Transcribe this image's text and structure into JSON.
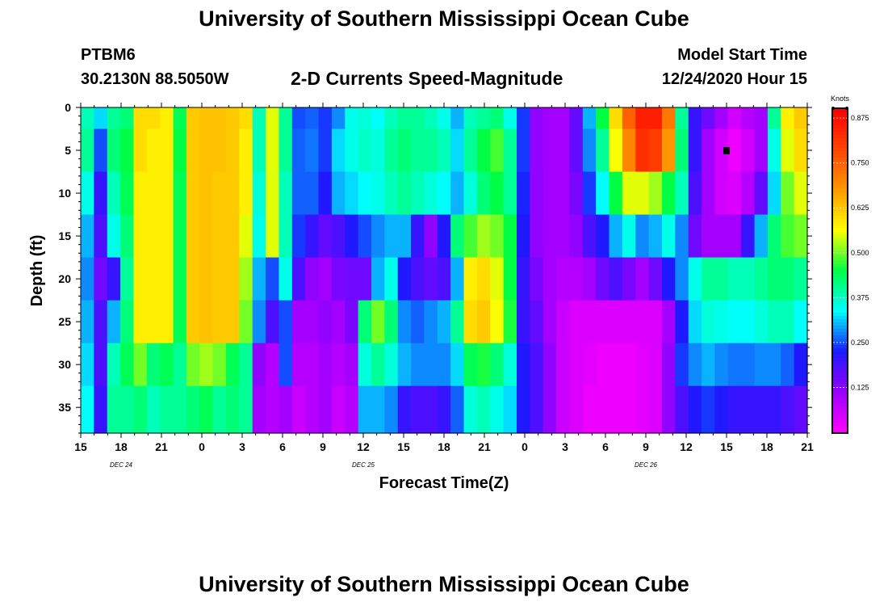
{
  "header": {
    "title": "University of Southern Mississippi Ocean Cube",
    "station": "PTBM6",
    "coords": "30.2130N 88.5050W",
    "model_label": "Model Start Time",
    "model_time": "12/24/2020 Hour 15"
  },
  "footer": {
    "title": "University of Southern Mississippi Ocean Cube"
  },
  "chart_data": {
    "type": "heatmap",
    "title": "2-D Currents Speed-Magnitude",
    "xlabel": "Forecast Time(Z)",
    "ylabel": "Depth (ft)",
    "x_start": "12/24/2020 15Z",
    "x_range_hours": [
      0,
      54
    ],
    "x_tick_labels": [
      "15",
      "18",
      "21",
      "0",
      "3",
      "6",
      "9",
      "12",
      "15",
      "18",
      "21",
      "0",
      "3",
      "6",
      "9",
      "12",
      "15",
      "18",
      "21"
    ],
    "date_labels": [
      {
        "text": "DEC 24",
        "at_tick": "18"
      },
      {
        "text": "DEC 25",
        "at_tick": "12"
      },
      {
        "text": "DEC 26",
        "at_tick": "9"
      }
    ],
    "y_range": [
      0,
      38
    ],
    "y_tick_labels": [
      "0",
      "5",
      "10",
      "15",
      "20",
      "25",
      "30",
      "35"
    ],
    "colorbar": {
      "unit": "Knots",
      "min": 0,
      "max": 0.9,
      "ticks": [
        "0.875",
        "0.750",
        "0.625",
        "0.500",
        "0.375",
        "0.250",
        "0.125"
      ],
      "colors": [
        "#ff00ff",
        "#9900ff",
        "#1a1aff",
        "#00ffff",
        "#00ff44",
        "#ffff00",
        "#ff9900",
        "#ff4400",
        "#ff0000"
      ]
    },
    "depths_ft": [
      0,
      5,
      10,
      15,
      20,
      25,
      30,
      35
    ],
    "column_hours": [
      0,
      1,
      2,
      3,
      4,
      5,
      6,
      7,
      8,
      9,
      10,
      11,
      12,
      13,
      14,
      15,
      16,
      17,
      18,
      19,
      20,
      21,
      22,
      23,
      24,
      25,
      26,
      27,
      28,
      29,
      30,
      31,
      32,
      33,
      34,
      35,
      36,
      37,
      38,
      39,
      40,
      41,
      42,
      43,
      44,
      45,
      46,
      47,
      48,
      49,
      50,
      51,
      52,
      53,
      54
    ],
    "speed_knots_by_depth": [
      [
        0.38,
        0.32,
        0.4,
        0.42,
        0.6,
        0.6,
        0.58,
        0.44,
        0.62,
        0.63,
        0.63,
        0.62,
        0.6,
        0.38,
        0.55,
        0.4,
        0.25,
        0.26,
        0.24,
        0.28,
        0.35,
        0.36,
        0.34,
        0.38,
        0.4,
        0.4,
        0.38,
        0.35,
        0.3,
        0.38,
        0.4,
        0.42,
        0.35,
        0.24,
        0.12,
        0.1,
        0.1,
        0.16,
        0.3,
        0.45,
        0.6,
        0.75,
        0.85,
        0.85,
        0.72,
        0.4,
        0.2,
        0.15,
        0.1,
        0.05,
        0.08,
        0.1,
        0.4,
        0.58,
        0.62
      ],
      [
        0.4,
        0.25,
        0.42,
        0.45,
        0.6,
        0.58,
        0.58,
        0.45,
        0.62,
        0.63,
        0.63,
        0.62,
        0.58,
        0.38,
        0.55,
        0.4,
        0.26,
        0.27,
        0.24,
        0.32,
        0.35,
        0.37,
        0.36,
        0.4,
        0.42,
        0.4,
        0.4,
        0.38,
        0.32,
        0.4,
        0.45,
        0.48,
        0.4,
        0.24,
        0.12,
        0.1,
        0.1,
        0.16,
        0.28,
        0.4,
        0.56,
        0.7,
        0.82,
        0.8,
        0.68,
        0.42,
        0.2,
        0.1,
        0.05,
        0.02,
        0.05,
        0.1,
        0.35,
        0.55,
        0.6
      ],
      [
        0.35,
        0.2,
        0.38,
        0.44,
        0.58,
        0.58,
        0.58,
        0.44,
        0.62,
        0.63,
        0.62,
        0.62,
        0.58,
        0.36,
        0.55,
        0.38,
        0.26,
        0.26,
        0.22,
        0.3,
        0.32,
        0.34,
        0.35,
        0.38,
        0.4,
        0.38,
        0.36,
        0.34,
        0.3,
        0.36,
        0.42,
        0.45,
        0.4,
        0.23,
        0.12,
        0.1,
        0.1,
        0.14,
        0.24,
        0.34,
        0.45,
        0.55,
        0.55,
        0.52,
        0.45,
        0.38,
        0.18,
        0.1,
        0.05,
        0.04,
        0.08,
        0.16,
        0.32,
        0.5,
        0.55
      ],
      [
        0.3,
        0.18,
        0.35,
        0.42,
        0.58,
        0.58,
        0.58,
        0.44,
        0.62,
        0.63,
        0.62,
        0.62,
        0.55,
        0.35,
        0.55,
        0.38,
        0.24,
        0.2,
        0.16,
        0.18,
        0.22,
        0.25,
        0.28,
        0.3,
        0.3,
        0.2,
        0.12,
        0.22,
        0.42,
        0.48,
        0.52,
        0.5,
        0.45,
        0.22,
        0.12,
        0.1,
        0.1,
        0.12,
        0.18,
        0.22,
        0.3,
        0.35,
        0.28,
        0.3,
        0.35,
        0.28,
        0.15,
        0.1,
        0.1,
        0.1,
        0.2,
        0.3,
        0.42,
        0.48,
        0.5
      ],
      [
        0.28,
        0.15,
        0.2,
        0.4,
        0.58,
        0.58,
        0.58,
        0.44,
        0.62,
        0.63,
        0.62,
        0.62,
        0.52,
        0.3,
        0.25,
        0.35,
        0.18,
        0.12,
        0.1,
        0.14,
        0.15,
        0.15,
        0.3,
        0.35,
        0.22,
        0.18,
        0.16,
        0.18,
        0.3,
        0.58,
        0.6,
        0.55,
        0.45,
        0.2,
        0.14,
        0.1,
        0.08,
        0.08,
        0.1,
        0.15,
        0.18,
        0.14,
        0.1,
        0.15,
        0.22,
        0.28,
        0.35,
        0.4,
        0.4,
        0.38,
        0.38,
        0.4,
        0.42,
        0.42,
        0.4
      ],
      [
        0.3,
        0.18,
        0.3,
        0.42,
        0.58,
        0.58,
        0.58,
        0.44,
        0.62,
        0.63,
        0.62,
        0.62,
        0.5,
        0.28,
        0.18,
        0.25,
        0.1,
        0.1,
        0.12,
        0.1,
        0.14,
        0.42,
        0.5,
        0.42,
        0.28,
        0.26,
        0.28,
        0.3,
        0.4,
        0.6,
        0.62,
        0.56,
        0.46,
        0.2,
        0.16,
        0.1,
        0.06,
        0.04,
        0.04,
        0.04,
        0.04,
        0.04,
        0.04,
        0.04,
        0.1,
        0.22,
        0.32,
        0.36,
        0.35,
        0.34,
        0.34,
        0.36,
        0.38,
        0.38,
        0.34
      ],
      [
        0.32,
        0.18,
        0.38,
        0.44,
        0.5,
        0.42,
        0.44,
        0.4,
        0.5,
        0.52,
        0.5,
        0.44,
        0.4,
        0.12,
        0.08,
        0.25,
        0.08,
        0.08,
        0.1,
        0.08,
        0.1,
        0.36,
        0.4,
        0.36,
        0.3,
        0.28,
        0.28,
        0.28,
        0.32,
        0.44,
        0.46,
        0.42,
        0.36,
        0.22,
        0.18,
        0.12,
        0.06,
        0.04,
        0.03,
        0.02,
        0.02,
        0.02,
        0.03,
        0.04,
        0.12,
        0.24,
        0.28,
        0.3,
        0.28,
        0.27,
        0.27,
        0.28,
        0.28,
        0.26,
        0.22
      ],
      [
        0.34,
        0.2,
        0.4,
        0.4,
        0.42,
        0.38,
        0.4,
        0.4,
        0.42,
        0.44,
        0.4,
        0.42,
        0.4,
        0.1,
        0.08,
        0.1,
        0.06,
        0.08,
        0.1,
        0.06,
        0.08,
        0.3,
        0.3,
        0.28,
        0.2,
        0.18,
        0.18,
        0.2,
        0.26,
        0.36,
        0.38,
        0.35,
        0.32,
        0.22,
        0.18,
        0.12,
        0.06,
        0.04,
        0.02,
        0.02,
        0.02,
        0.02,
        0.03,
        0.04,
        0.12,
        0.18,
        0.22,
        0.24,
        0.22,
        0.2,
        0.2,
        0.2,
        0.2,
        0.18,
        0.16
      ]
    ],
    "annotation": {
      "label": "marker",
      "hour": 48,
      "depth_ft": 5
    }
  }
}
